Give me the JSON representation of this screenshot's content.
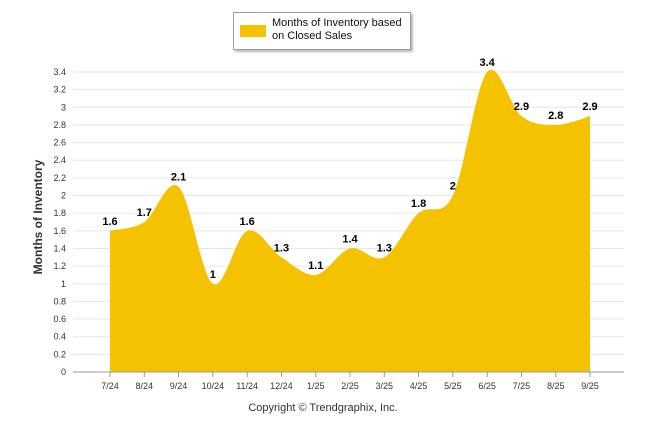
{
  "colors": {
    "area": "#F5C200",
    "grid": "#e6e6e6",
    "axis": "#999999"
  },
  "legend": {
    "label": "Months of Inventory based on Closed Sales",
    "icon": "legend-swatch"
  },
  "copyright": "Copyright © Trendgraphix, Inc.",
  "chart_data": {
    "type": "area",
    "title": "",
    "xlabel": "",
    "ylabel": "Months of Inventory",
    "ylim": [
      0,
      3.4
    ],
    "ytick_step": 0.2,
    "yticks": [
      "0",
      "0.2",
      "0.4",
      "0.6",
      "0.8",
      "1",
      "1.2",
      "1.4",
      "1.6",
      "1.8",
      "2",
      "2.2",
      "2.4",
      "2.6",
      "2.8",
      "3",
      "3.2",
      "3.4"
    ],
    "categories": [
      "7/24",
      "8/24",
      "9/24",
      "10/24",
      "11/24",
      "12/24",
      "1/25",
      "2/25",
      "3/25",
      "4/25",
      "5/25",
      "6/25",
      "7/25",
      "8/25",
      "9/25"
    ],
    "series": [
      {
        "name": "Months of Inventory based on Closed Sales",
        "values": [
          1.6,
          1.7,
          2.1,
          1,
          1.6,
          1.3,
          1.1,
          1.4,
          1.3,
          1.8,
          2,
          3.4,
          2.9,
          2.8,
          2.9
        ],
        "labels": [
          "1.6",
          "1.7",
          "2.1",
          "1",
          "1.6",
          "1.3",
          "1.1",
          "1.4",
          "1.3",
          "1.8",
          "2",
          "3.4",
          "2.9",
          "2.8",
          "2.9"
        ]
      }
    ],
    "grid": true,
    "legend_position": "top-center"
  }
}
